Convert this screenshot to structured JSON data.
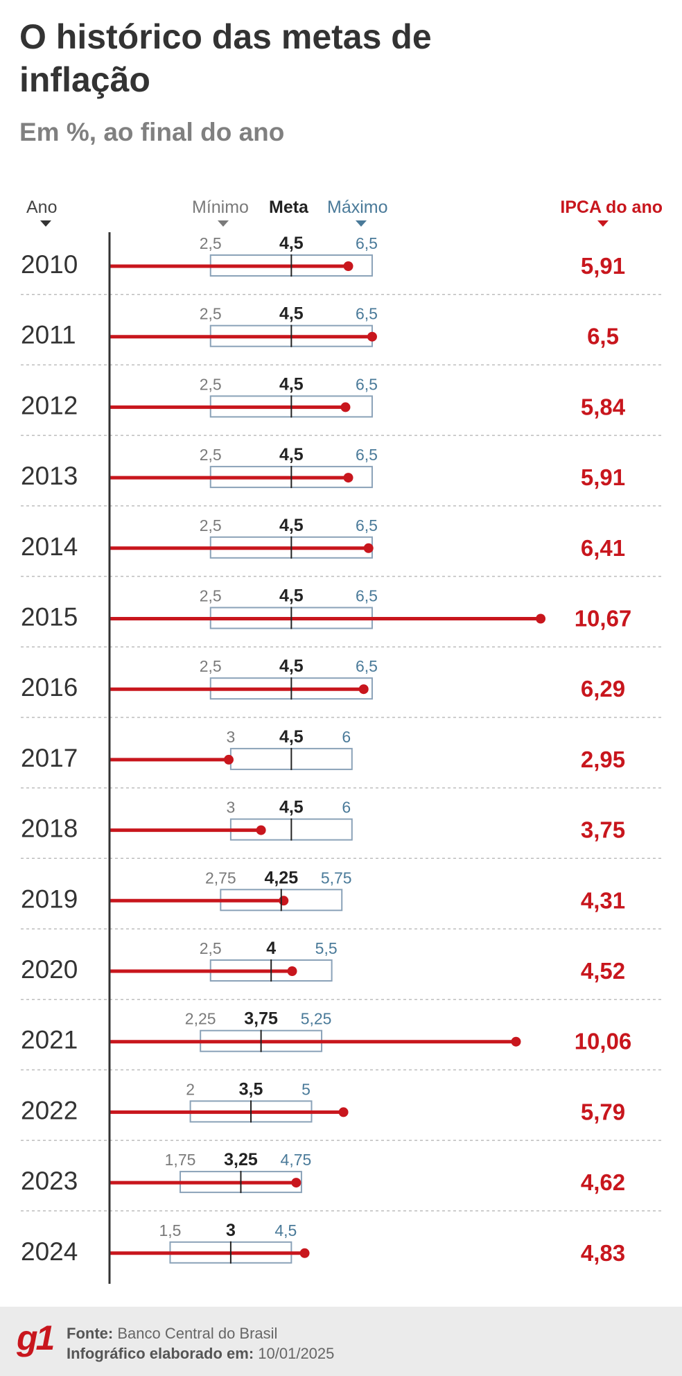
{
  "title": "O histórico das metas de inflação",
  "subtitle": "Em %, ao final do ano",
  "headers": {
    "ano": "Ano",
    "minimo": "Mínimo",
    "meta": "Meta",
    "maximo": "Máximo",
    "ipca": "IPCA do ano"
  },
  "colors": {
    "ipca": "#c8161d",
    "meta": "#222222",
    "minimo": "#7a7a7a",
    "maximo": "#4a7a99",
    "band_border": "#8aa2b8"
  },
  "chart_data": {
    "type": "bar",
    "categories": [
      "2010",
      "2011",
      "2012",
      "2013",
      "2014",
      "2015",
      "2016",
      "2017",
      "2018",
      "2019",
      "2020",
      "2021",
      "2022",
      "2023",
      "2024"
    ],
    "series": [
      {
        "name": "Mínimo",
        "values": [
          2.5,
          2.5,
          2.5,
          2.5,
          2.5,
          2.5,
          2.5,
          3,
          3,
          2.75,
          2.5,
          2.25,
          2,
          1.75,
          1.5
        ],
        "labels": [
          "2,5",
          "2,5",
          "2,5",
          "2,5",
          "2,5",
          "2,5",
          "2,5",
          "3",
          "3",
          "2,75",
          "2,5",
          "2,25",
          "2",
          "1,75",
          "1,5"
        ]
      },
      {
        "name": "Meta",
        "values": [
          4.5,
          4.5,
          4.5,
          4.5,
          4.5,
          4.5,
          4.5,
          4.5,
          4.5,
          4.25,
          4,
          3.75,
          3.5,
          3.25,
          3
        ],
        "labels": [
          "4,5",
          "4,5",
          "4,5",
          "4,5",
          "4,5",
          "4,5",
          "4,5",
          "4,5",
          "4,5",
          "4,25",
          "4",
          "3,75",
          "3,5",
          "3,25",
          "3"
        ]
      },
      {
        "name": "Máximo",
        "values": [
          6.5,
          6.5,
          6.5,
          6.5,
          6.5,
          6.5,
          6.5,
          6,
          6,
          5.75,
          5.5,
          5.25,
          5,
          4.75,
          4.5
        ],
        "labels": [
          "6,5",
          "6,5",
          "6,5",
          "6,5",
          "6,5",
          "6,5",
          "6,5",
          "6",
          "6",
          "5,75",
          "5,5",
          "5,25",
          "5",
          "4,75",
          "4,5"
        ]
      },
      {
        "name": "IPCA do ano",
        "values": [
          5.91,
          6.5,
          5.84,
          5.91,
          6.41,
          10.67,
          6.29,
          2.95,
          3.75,
          4.31,
          4.52,
          10.06,
          5.79,
          4.62,
          4.83
        ],
        "labels": [
          "5,91",
          "6,5",
          "5,84",
          "5,91",
          "6,41",
          "10,67",
          "6,29",
          "2,95",
          "3,75",
          "4,31",
          "4,52",
          "10,06",
          "5,79",
          "4,62",
          "4,83"
        ]
      }
    ],
    "xlim": [
      0,
      10.67
    ]
  },
  "footer": {
    "logo": "g1",
    "source_label": "Fonte:",
    "source_value": "Banco Central do Brasil",
    "date_label": "Infográfico elaborado em:",
    "date_value": "10/01/2025"
  }
}
